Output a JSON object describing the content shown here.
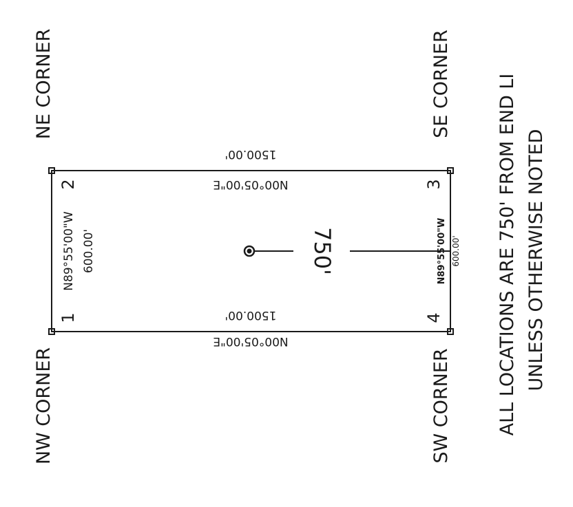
{
  "corners": {
    "nw": "NW CORNER",
    "ne": "NE CORNER",
    "sw": "SW CORNER",
    "se": "SE CORNER"
  },
  "point_numbers": [
    "1",
    "2",
    "3",
    "4"
  ],
  "boundary": {
    "north_bearing": "N89°55'00\"W",
    "north_distance": "600.00'",
    "east_bearing": "N00°05'00\"E",
    "east_distance": "1500.00'",
    "west_bearing": "N00°05'00\"E",
    "west_distance": "1500.00'",
    "south_bearing": "N89°55'00\"W",
    "south_distance": "600.00'"
  },
  "location_dimension": "750'",
  "note": {
    "line1": "ALL LOCATIONS ARE 750' FROM END LI",
    "line2": "UNLESS OTHERWISE NOTED"
  }
}
